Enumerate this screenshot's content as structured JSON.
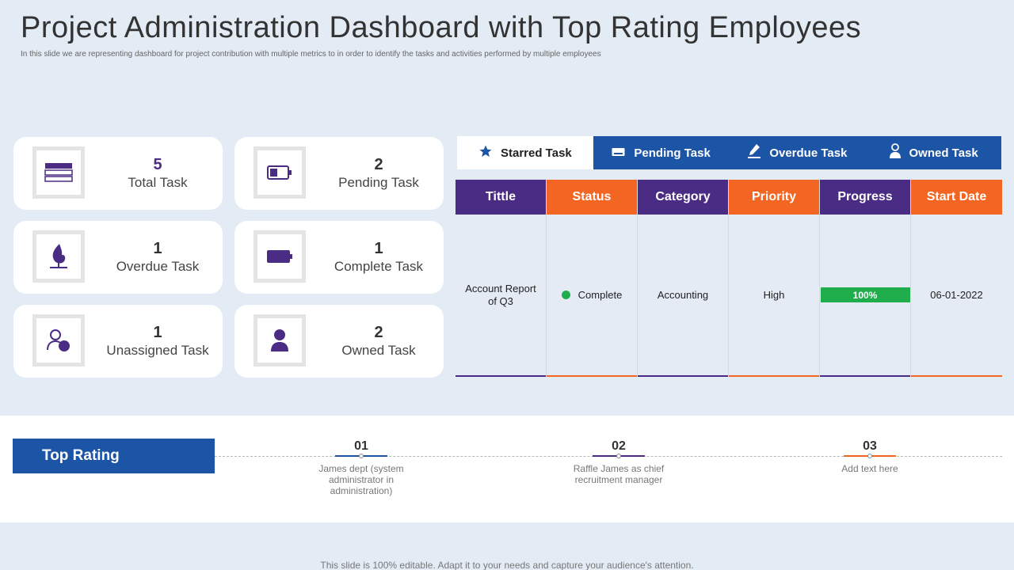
{
  "header": {
    "title": "Project Administration Dashboard with Top Rating Employees",
    "subtitle": "In this slide we are representing dashboard for project contribution with multiple metrics to in order to identify the tasks and activities performed by multiple  employees"
  },
  "cards": [
    {
      "value": "5",
      "label": "Total Task",
      "icon": "list-icon"
    },
    {
      "value": "2",
      "label": "Pending Task",
      "icon": "battery-low-icon"
    },
    {
      "value": "1",
      "label": "Overdue Task",
      "icon": "flame-icon"
    },
    {
      "value": "1",
      "label": "Complete Task",
      "icon": "battery-full-icon"
    },
    {
      "value": "1",
      "label": "Unassigned Task",
      "icon": "users-icon"
    },
    {
      "value": "2",
      "label": "Owned Task",
      "icon": "user-icon"
    }
  ],
  "tabs": [
    {
      "label": "Starred Task",
      "icon": "star-icon"
    },
    {
      "label": "Pending Task",
      "icon": "battery-icon"
    },
    {
      "label": "Overdue Task",
      "icon": "pen-icon"
    },
    {
      "label": "Owned Task",
      "icon": "user-icon"
    }
  ],
  "table": {
    "headers": [
      "Tittle",
      "Status",
      "Category",
      "Priority",
      "Progress",
      "Start Date"
    ],
    "row": {
      "title": "Account Report of Q3",
      "status": "Complete",
      "category": "Accounting",
      "priority": "High",
      "progress": "100%",
      "progress_value": 100,
      "start_date": "06-01-2022"
    }
  },
  "top_rating": {
    "label": "Top Rating",
    "ranks": [
      {
        "num": "01",
        "desc": "James dept (system administrator in administration)"
      },
      {
        "num": "02",
        "desc": "Raffle James as chief recruitment manager"
      },
      {
        "num": "03",
        "desc": "Add text here"
      }
    ]
  },
  "footer": "This slide is 100% editable. Adapt it to your needs and capture your audience's attention.",
  "colors": {
    "purple": "#4b2c84",
    "orange": "#f26522",
    "blue": "#1d55a6",
    "green": "#1fae4b",
    "background": "#e3ebf4"
  }
}
